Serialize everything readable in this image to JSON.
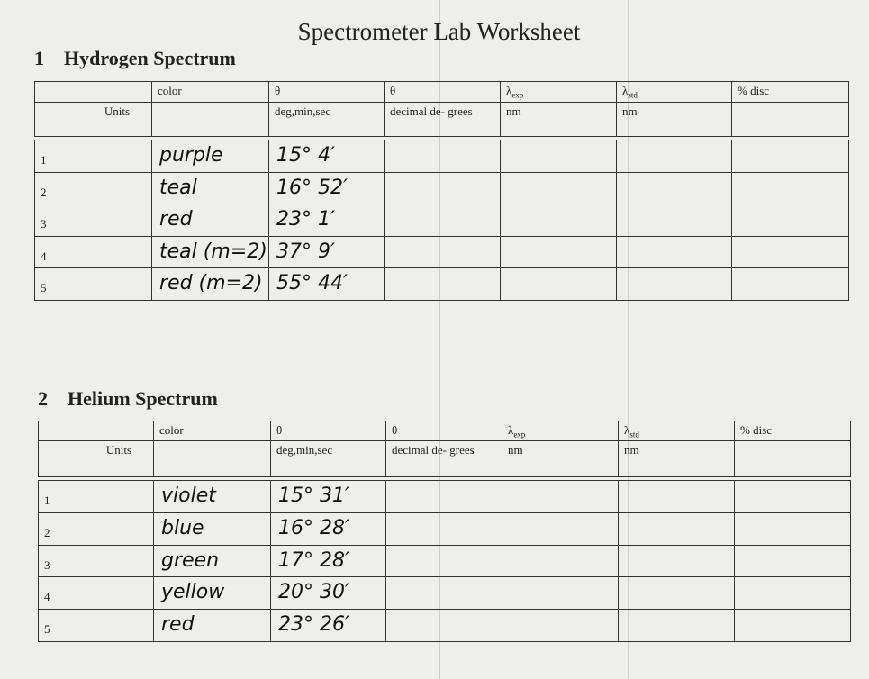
{
  "title": "Spectrometer Lab Worksheet",
  "sections": [
    {
      "number": "1",
      "title": "Hydrogen Spectrum",
      "columns": [
        {
          "units": "Units"
        },
        {
          "name": "color"
        },
        {
          "name": "θ",
          "units": "deg,min,sec"
        },
        {
          "name": "θ",
          "units": "decimal de- grees"
        },
        {
          "name": "λ",
          "sub": "exp",
          "units": "nm"
        },
        {
          "name": "λ",
          "sub": "std",
          "units": "nm"
        },
        {
          "name": "% disc"
        }
      ],
      "rows": [
        {
          "label": "1",
          "color": "purple",
          "angle": "15° 4′"
        },
        {
          "label": "2",
          "color": "teal",
          "angle": "16° 52′"
        },
        {
          "label": "3",
          "color": "red",
          "angle": "23° 1′"
        },
        {
          "label": "4",
          "color": "teal (m=2)",
          "angle": "37° 9′"
        },
        {
          "label": "5",
          "color": "red (m=2)",
          "angle": "55° 44′"
        }
      ]
    },
    {
      "number": "2",
      "title": "Helium Spectrum",
      "columns": [
        {
          "units": "Units"
        },
        {
          "name": "color"
        },
        {
          "name": "θ",
          "units": "deg,min,sec"
        },
        {
          "name": "θ",
          "units": "decimal de- grees"
        },
        {
          "name": "λ",
          "sub": "exp",
          "units": "nm"
        },
        {
          "name": "λ",
          "sub": "std",
          "units": "nm"
        },
        {
          "name": "% disc"
        }
      ],
      "rows": [
        {
          "label": "1",
          "color": "violet",
          "angle": "15° 31′"
        },
        {
          "label": "2",
          "color": "blue",
          "angle": "16° 28′"
        },
        {
          "label": "3",
          "color": "green",
          "angle": "17° 28′"
        },
        {
          "label": "4",
          "color": "yellow",
          "angle": "20° 30′"
        },
        {
          "label": "5",
          "color": "red",
          "angle": "23° 26′"
        }
      ]
    }
  ]
}
